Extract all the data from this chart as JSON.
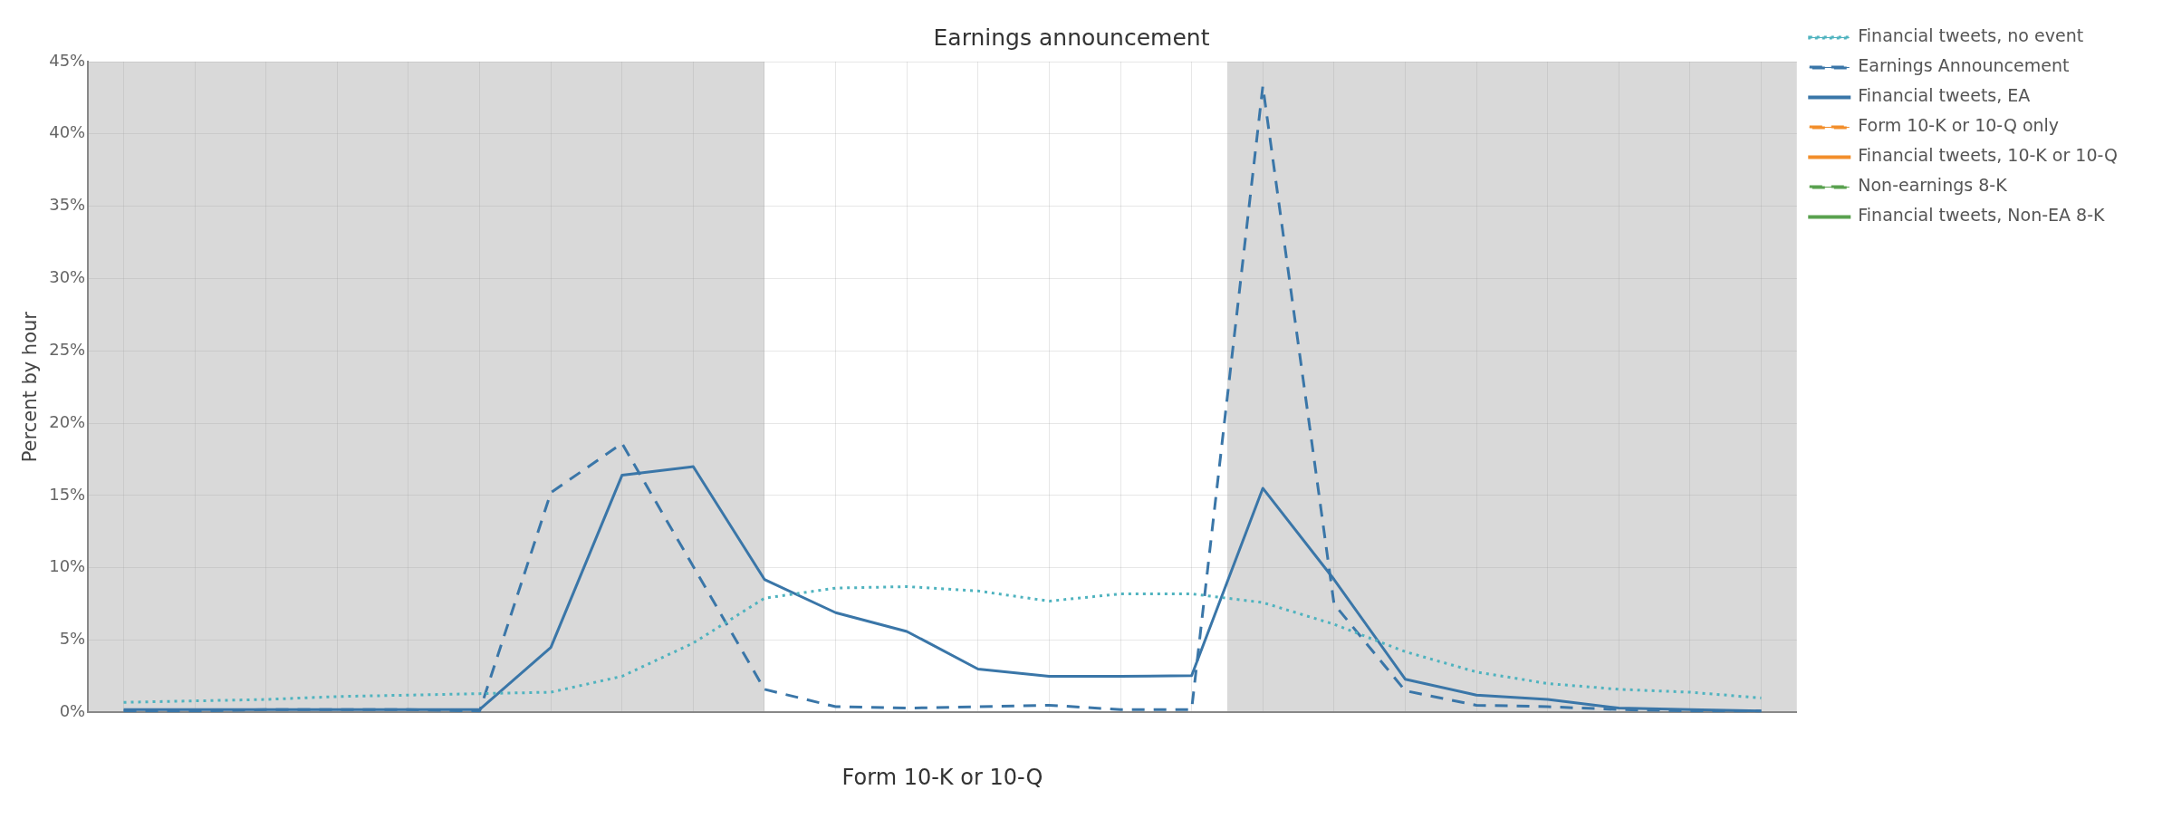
{
  "chart_data": {
    "type": "line",
    "title": "Earnings announcement",
    "xlabel": "Form 10-K or 10-Q",
    "ylabel": "Percent by hour",
    "categories": [
      null,
      null,
      null,
      null,
      null,
      null,
      null,
      null,
      null,
      null,
      null,
      null,
      null,
      null,
      null,
      null,
      null,
      null,
      null,
      null,
      null,
      null,
      null,
      null
    ],
    "ylim": [
      0,
      45
    ],
    "yticks": [
      {
        "value": 0,
        "label": "0%"
      },
      {
        "value": 5,
        "label": "5%"
      },
      {
        "value": 10,
        "label": "10%"
      },
      {
        "value": 15,
        "label": "15%"
      },
      {
        "value": 20,
        "label": "20%"
      },
      {
        "value": 25,
        "label": "25%"
      },
      {
        "value": 30,
        "label": "30%"
      },
      {
        "value": 35,
        "label": "35%"
      },
      {
        "value": 40,
        "label": "40%"
      },
      {
        "value": 45,
        "label": "45%"
      }
    ],
    "grid": true,
    "legend": "top right",
    "marker": "none",
    "series": [
      {
        "name": "Financial tweets, no event",
        "color": "#4fb3bf",
        "line_style": "dotted",
        "values": [
          0.7,
          0.8,
          0.9,
          1.1,
          1.2,
          1.3,
          1.4,
          2.5,
          4.8,
          7.9,
          8.6,
          8.7,
          8.4,
          7.7,
          8.2,
          8.2,
          7.6,
          6.1,
          4.2,
          2.8,
          2.0,
          1.6,
          1.4,
          1.0
        ]
      },
      {
        "name": "Earnings Announcement",
        "color": "#3a76a8",
        "line_style": "dashed",
        "values": [
          0.1,
          0.1,
          0.2,
          0.2,
          0.2,
          0.1,
          15.2,
          18.6,
          10.1,
          1.6,
          0.4,
          0.3,
          0.4,
          0.5,
          0.2,
          0.2,
          43.3,
          7.5,
          1.5,
          0.5,
          0.4,
          0.2,
          0.1,
          0.1
        ]
      },
      {
        "name": "Financial tweets, EA",
        "color": "#3a76a8",
        "line_style": "solid",
        "values": [
          0.2,
          0.2,
          0.2,
          0.2,
          0.2,
          0.2,
          4.5,
          16.4,
          17.0,
          9.2,
          6.9,
          5.6,
          3.0,
          2.5,
          2.5,
          2.55,
          15.5,
          9.2,
          2.3,
          1.2,
          0.9,
          0.3,
          0.2,
          0.1
        ]
      },
      {
        "name": "Form 10-K or 10-Q only",
        "color": "#f28e2b",
        "line_style": "dashed",
        "values": [
          null,
          null,
          null,
          null,
          null,
          null,
          null,
          null,
          null,
          null,
          null,
          null,
          null,
          null,
          null,
          null,
          null,
          null,
          null,
          null,
          null,
          null,
          null,
          null
        ]
      },
      {
        "name": "Financial tweets, 10-K or 10-Q",
        "color": "#f28e2b",
        "line_style": "solid",
        "values": [
          null,
          null,
          null,
          null,
          null,
          null,
          null,
          null,
          null,
          null,
          null,
          null,
          null,
          null,
          null,
          null,
          null,
          null,
          null,
          null,
          null,
          null,
          null,
          null
        ]
      },
      {
        "name": "Non-earnings 8-K",
        "color": "#59a14f",
        "line_style": "dashed",
        "values": [
          null,
          null,
          null,
          null,
          null,
          null,
          null,
          null,
          null,
          null,
          null,
          null,
          null,
          null,
          null,
          null,
          null,
          null,
          null,
          null,
          null,
          null,
          null,
          null
        ]
      },
      {
        "name": "Financial tweets, Non-EA 8-K",
        "color": "#59a14f",
        "line_style": "solid",
        "values": [
          null,
          null,
          null,
          null,
          null,
          null,
          null,
          null,
          null,
          null,
          null,
          null,
          null,
          null,
          null,
          null,
          null,
          null,
          null,
          null,
          null,
          null,
          null,
          null
        ]
      }
    ]
  }
}
